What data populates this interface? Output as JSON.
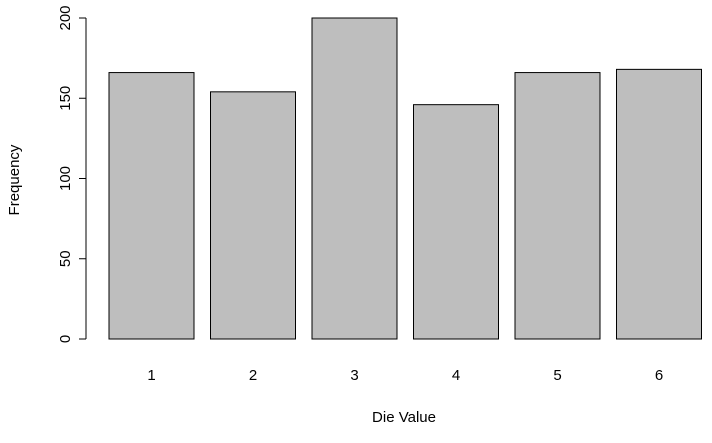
{
  "chart_data": {
    "type": "bar",
    "categories": [
      "1",
      "2",
      "3",
      "4",
      "5",
      "6"
    ],
    "values": [
      166,
      154,
      200,
      146,
      166,
      168
    ],
    "title": "",
    "xlabel": "Die Value",
    "ylabel": "Frequency",
    "ylim": [
      0,
      200
    ],
    "yticks": [
      0,
      50,
      100,
      150,
      200
    ],
    "grid": false,
    "legend": "none",
    "bar_fill": "#bebebe",
    "bar_stroke": "#000000"
  }
}
